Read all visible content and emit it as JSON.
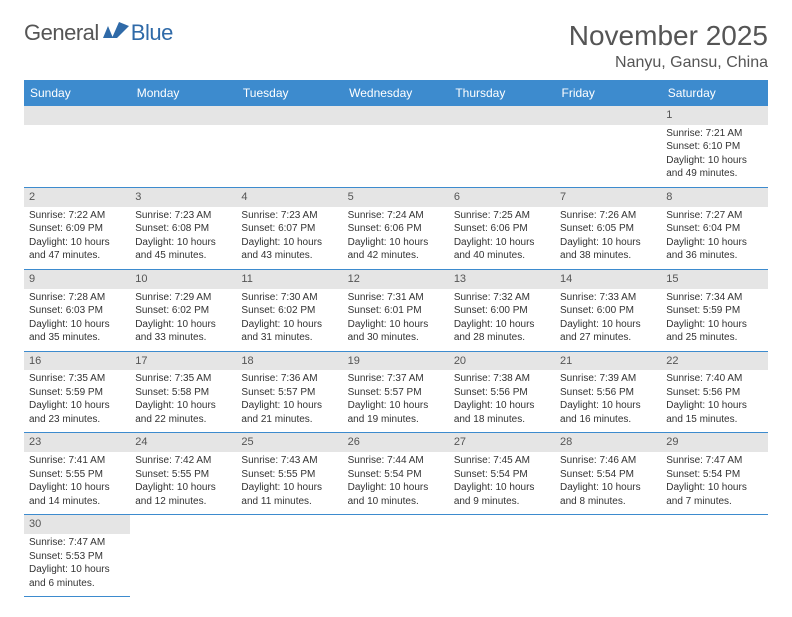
{
  "logo": {
    "text_general": "General",
    "text_blue": "Blue"
  },
  "header": {
    "month_title": "November 2025",
    "location": "Nanyu, Gansu, China"
  },
  "colors": {
    "header_bg": "#3d8bce",
    "header_text": "#ffffff",
    "daynum_bg": "#e5e5e5",
    "border": "#3d8bce",
    "title_color": "#555555",
    "body_text": "#333333",
    "logo_blue": "#2f6aa8"
  },
  "weekdays": [
    "Sunday",
    "Monday",
    "Tuesday",
    "Wednesday",
    "Thursday",
    "Friday",
    "Saturday"
  ],
  "layout": {
    "columns": 7,
    "rows": 6,
    "first_day_column_index": 6
  },
  "days": [
    {
      "n": "1",
      "sunrise": "Sunrise: 7:21 AM",
      "sunset": "Sunset: 6:10 PM",
      "day1": "Daylight: 10 hours",
      "day2": "and 49 minutes."
    },
    {
      "n": "2",
      "sunrise": "Sunrise: 7:22 AM",
      "sunset": "Sunset: 6:09 PM",
      "day1": "Daylight: 10 hours",
      "day2": "and 47 minutes."
    },
    {
      "n": "3",
      "sunrise": "Sunrise: 7:23 AM",
      "sunset": "Sunset: 6:08 PM",
      "day1": "Daylight: 10 hours",
      "day2": "and 45 minutes."
    },
    {
      "n": "4",
      "sunrise": "Sunrise: 7:23 AM",
      "sunset": "Sunset: 6:07 PM",
      "day1": "Daylight: 10 hours",
      "day2": "and 43 minutes."
    },
    {
      "n": "5",
      "sunrise": "Sunrise: 7:24 AM",
      "sunset": "Sunset: 6:06 PM",
      "day1": "Daylight: 10 hours",
      "day2": "and 42 minutes."
    },
    {
      "n": "6",
      "sunrise": "Sunrise: 7:25 AM",
      "sunset": "Sunset: 6:06 PM",
      "day1": "Daylight: 10 hours",
      "day2": "and 40 minutes."
    },
    {
      "n": "7",
      "sunrise": "Sunrise: 7:26 AM",
      "sunset": "Sunset: 6:05 PM",
      "day1": "Daylight: 10 hours",
      "day2": "and 38 minutes."
    },
    {
      "n": "8",
      "sunrise": "Sunrise: 7:27 AM",
      "sunset": "Sunset: 6:04 PM",
      "day1": "Daylight: 10 hours",
      "day2": "and 36 minutes."
    },
    {
      "n": "9",
      "sunrise": "Sunrise: 7:28 AM",
      "sunset": "Sunset: 6:03 PM",
      "day1": "Daylight: 10 hours",
      "day2": "and 35 minutes."
    },
    {
      "n": "10",
      "sunrise": "Sunrise: 7:29 AM",
      "sunset": "Sunset: 6:02 PM",
      "day1": "Daylight: 10 hours",
      "day2": "and 33 minutes."
    },
    {
      "n": "11",
      "sunrise": "Sunrise: 7:30 AM",
      "sunset": "Sunset: 6:02 PM",
      "day1": "Daylight: 10 hours",
      "day2": "and 31 minutes."
    },
    {
      "n": "12",
      "sunrise": "Sunrise: 7:31 AM",
      "sunset": "Sunset: 6:01 PM",
      "day1": "Daylight: 10 hours",
      "day2": "and 30 minutes."
    },
    {
      "n": "13",
      "sunrise": "Sunrise: 7:32 AM",
      "sunset": "Sunset: 6:00 PM",
      "day1": "Daylight: 10 hours",
      "day2": "and 28 minutes."
    },
    {
      "n": "14",
      "sunrise": "Sunrise: 7:33 AM",
      "sunset": "Sunset: 6:00 PM",
      "day1": "Daylight: 10 hours",
      "day2": "and 27 minutes."
    },
    {
      "n": "15",
      "sunrise": "Sunrise: 7:34 AM",
      "sunset": "Sunset: 5:59 PM",
      "day1": "Daylight: 10 hours",
      "day2": "and 25 minutes."
    },
    {
      "n": "16",
      "sunrise": "Sunrise: 7:35 AM",
      "sunset": "Sunset: 5:59 PM",
      "day1": "Daylight: 10 hours",
      "day2": "and 23 minutes."
    },
    {
      "n": "17",
      "sunrise": "Sunrise: 7:35 AM",
      "sunset": "Sunset: 5:58 PM",
      "day1": "Daylight: 10 hours",
      "day2": "and 22 minutes."
    },
    {
      "n": "18",
      "sunrise": "Sunrise: 7:36 AM",
      "sunset": "Sunset: 5:57 PM",
      "day1": "Daylight: 10 hours",
      "day2": "and 21 minutes."
    },
    {
      "n": "19",
      "sunrise": "Sunrise: 7:37 AM",
      "sunset": "Sunset: 5:57 PM",
      "day1": "Daylight: 10 hours",
      "day2": "and 19 minutes."
    },
    {
      "n": "20",
      "sunrise": "Sunrise: 7:38 AM",
      "sunset": "Sunset: 5:56 PM",
      "day1": "Daylight: 10 hours",
      "day2": "and 18 minutes."
    },
    {
      "n": "21",
      "sunrise": "Sunrise: 7:39 AM",
      "sunset": "Sunset: 5:56 PM",
      "day1": "Daylight: 10 hours",
      "day2": "and 16 minutes."
    },
    {
      "n": "22",
      "sunrise": "Sunrise: 7:40 AM",
      "sunset": "Sunset: 5:56 PM",
      "day1": "Daylight: 10 hours",
      "day2": "and 15 minutes."
    },
    {
      "n": "23",
      "sunrise": "Sunrise: 7:41 AM",
      "sunset": "Sunset: 5:55 PM",
      "day1": "Daylight: 10 hours",
      "day2": "and 14 minutes."
    },
    {
      "n": "24",
      "sunrise": "Sunrise: 7:42 AM",
      "sunset": "Sunset: 5:55 PM",
      "day1": "Daylight: 10 hours",
      "day2": "and 12 minutes."
    },
    {
      "n": "25",
      "sunrise": "Sunrise: 7:43 AM",
      "sunset": "Sunset: 5:55 PM",
      "day1": "Daylight: 10 hours",
      "day2": "and 11 minutes."
    },
    {
      "n": "26",
      "sunrise": "Sunrise: 7:44 AM",
      "sunset": "Sunset: 5:54 PM",
      "day1": "Daylight: 10 hours",
      "day2": "and 10 minutes."
    },
    {
      "n": "27",
      "sunrise": "Sunrise: 7:45 AM",
      "sunset": "Sunset: 5:54 PM",
      "day1": "Daylight: 10 hours",
      "day2": "and 9 minutes."
    },
    {
      "n": "28",
      "sunrise": "Sunrise: 7:46 AM",
      "sunset": "Sunset: 5:54 PM",
      "day1": "Daylight: 10 hours",
      "day2": "and 8 minutes."
    },
    {
      "n": "29",
      "sunrise": "Sunrise: 7:47 AM",
      "sunset": "Sunset: 5:54 PM",
      "day1": "Daylight: 10 hours",
      "day2": "and 7 minutes."
    },
    {
      "n": "30",
      "sunrise": "Sunrise: 7:47 AM",
      "sunset": "Sunset: 5:53 PM",
      "day1": "Daylight: 10 hours",
      "day2": "and 6 minutes."
    }
  ]
}
